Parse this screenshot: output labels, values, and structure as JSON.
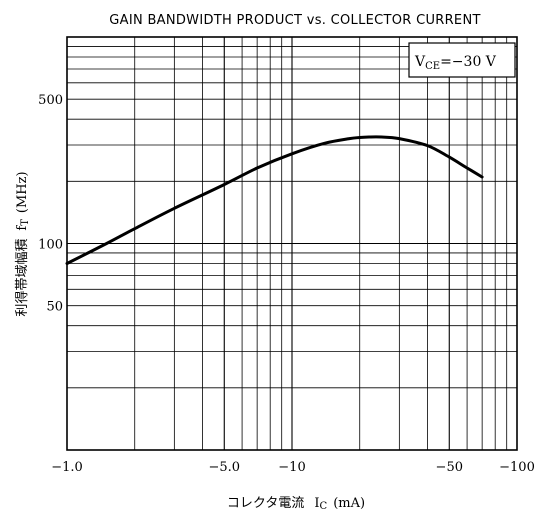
{
  "chart_data": {
    "type": "line",
    "title": "GAIN BANDWIDTH PRODUCT vs. COLLECTOR CURRENT",
    "xlabel_prefix": "コレクタ電流",
    "xlabel_symbol": "I",
    "xlabel_sub": "C",
    "xlabel_unit": "(mA)",
    "ylabel_prefix": "利得帯域幅積",
    "ylabel_symbol": "f",
    "ylabel_sub": "T",
    "ylabel_unit": "(MHz)",
    "x_scale": "log",
    "y_scale": "log",
    "xlim": [
      -1,
      -100
    ],
    "ylim": [
      10,
      1000
    ],
    "x_ticks": [
      {
        "value": -1,
        "label": "−1.0"
      },
      {
        "value": -5,
        "label": "−5.0"
      },
      {
        "value": -10,
        "label": "−10"
      },
      {
        "value": -50,
        "label": "−50"
      },
      {
        "value": -100,
        "label": "−100"
      }
    ],
    "y_ticks": [
      {
        "value": 50,
        "label": "50"
      },
      {
        "value": 100,
        "label": "100"
      },
      {
        "value": 500,
        "label": "500"
      }
    ],
    "grid": true,
    "annotation": {
      "prefix": "V",
      "sub": "CE",
      "text": "=−30 V",
      "placement": "top-right"
    },
    "series": [
      {
        "x": [
          -1.0,
          -1.5,
          -2.0,
          -3.0,
          -5.0,
          -7.0,
          -10,
          -14,
          -18,
          -20,
          -22,
          -25,
          -30,
          -40,
          -50,
          -60,
          -70
        ],
        "y": [
          80,
          100,
          118,
          148,
          193,
          232,
          272,
          306,
          322,
          326,
          328,
          328,
          322,
          298,
          262,
          232,
          210
        ]
      }
    ]
  }
}
